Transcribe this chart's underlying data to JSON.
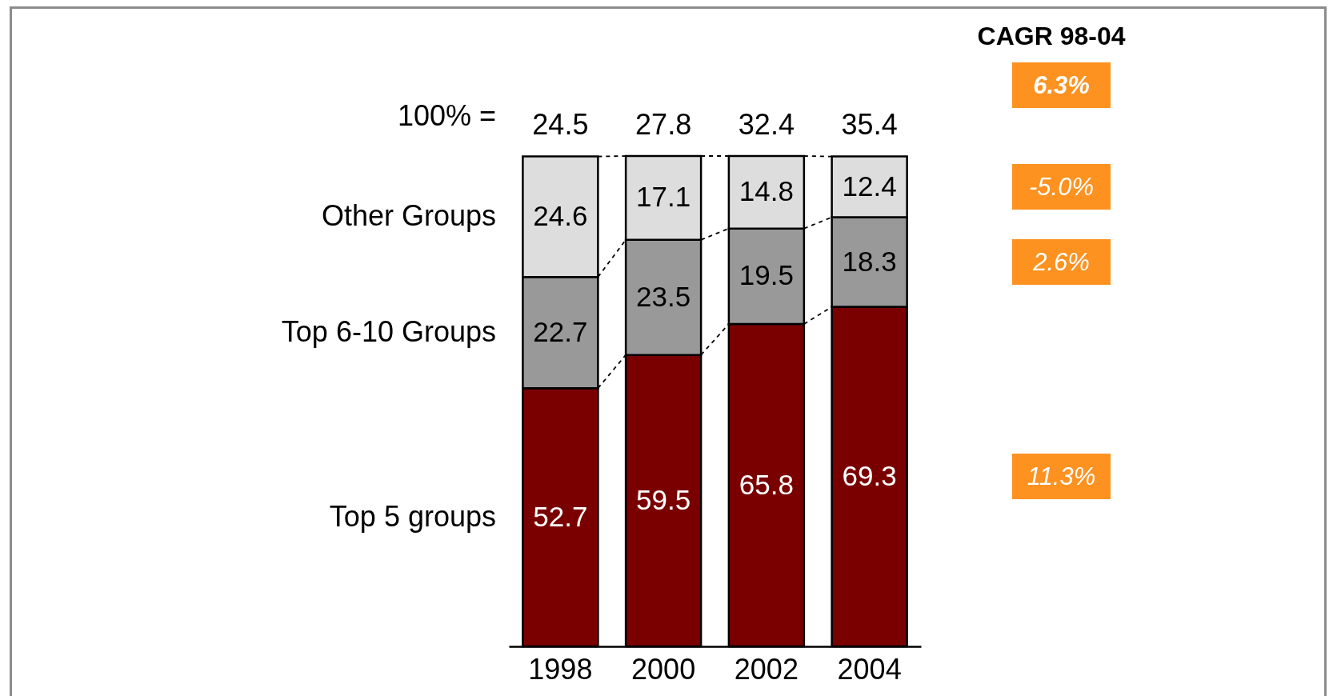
{
  "chart_data": {
    "type": "bar",
    "stacked": true,
    "categories": [
      "1998",
      "2000",
      "2002",
      "2004"
    ],
    "series": [
      {
        "name": "Top 5 groups",
        "color": "#7a0000",
        "values": [
          52.7,
          59.5,
          65.8,
          69.3
        ]
      },
      {
        "name": "Top 6-10 Groups",
        "color": "#999999",
        "values": [
          22.7,
          23.5,
          19.5,
          18.3
        ]
      },
      {
        "name": "Other Groups",
        "color": "#dddddd",
        "values": [
          24.6,
          17.1,
          14.8,
          12.4
        ]
      }
    ],
    "data_labels": true,
    "annotations": [
      "100% =",
      "24.5",
      "27.8",
      "32.4",
      "35.4",
      "CAGR 98-04",
      "6.3%",
      "-5.0%",
      "2.6%",
      "11.3%"
    ]
  }
}
